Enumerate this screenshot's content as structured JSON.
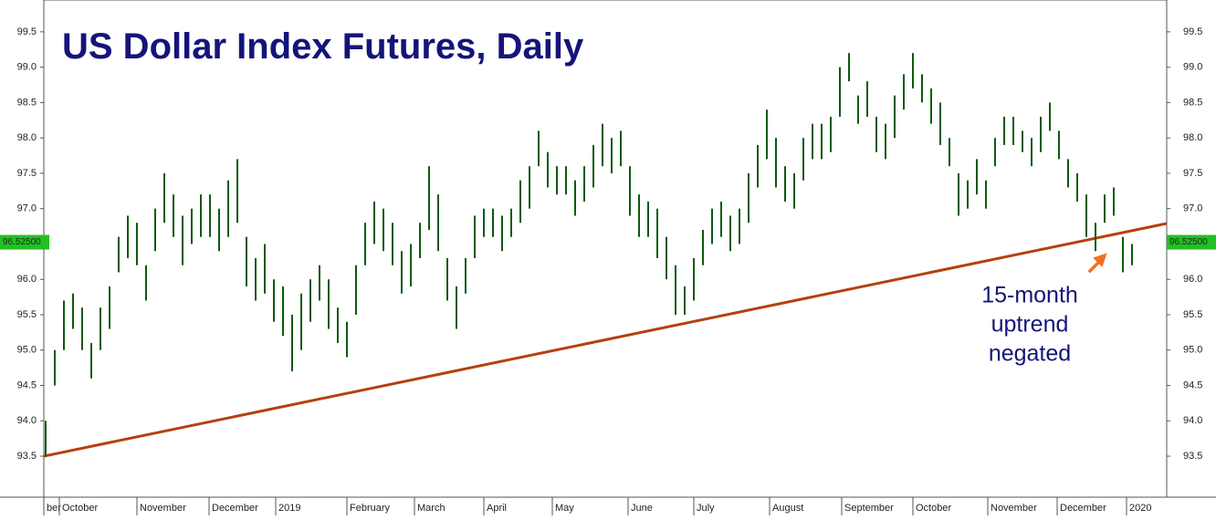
{
  "chart_data": {
    "type": "range-bar",
    "title": "US Dollar Index Futures, Daily",
    "annotation": [
      "15-month",
      "uptrend",
      "negated"
    ],
    "xlim": [
      -0.2,
      122.8
    ],
    "ylim": [
      92.92,
      99.95
    ],
    "yticks": [
      {
        "value": 93.5,
        "label": "93.5"
      },
      {
        "value": 94,
        "label": "94.0"
      },
      {
        "value": 94.5,
        "label": "94.5"
      },
      {
        "value": 95,
        "label": "95.0"
      },
      {
        "value": 95.5,
        "label": "95.5"
      },
      {
        "value": 96,
        "label": "96.0"
      },
      {
        "value": 96.5,
        "label": "96.5"
      },
      {
        "value": 97,
        "label": "97.0"
      },
      {
        "value": 97.5,
        "label": "97.5"
      },
      {
        "value": 98,
        "label": "98.0"
      },
      {
        "value": 98.5,
        "label": "98.5"
      },
      {
        "value": 99,
        "label": "99.0"
      },
      {
        "value": 99.5,
        "label": "99.5"
      }
    ],
    "xticks": [
      {
        "value": -0.2,
        "label": "ber"
      },
      {
        "value": 1.5,
        "label": "October"
      },
      {
        "value": 10,
        "label": "November"
      },
      {
        "value": 17.9,
        "label": "December"
      },
      {
        "value": 25.2,
        "label": "2019"
      },
      {
        "value": 33,
        "label": "February"
      },
      {
        "value": 40.4,
        "label": "March"
      },
      {
        "value": 48,
        "label": "April"
      },
      {
        "value": 55.5,
        "label": "May"
      },
      {
        "value": 63.8,
        "label": "June"
      },
      {
        "value": 71,
        "label": "July"
      },
      {
        "value": 79.3,
        "label": "August"
      },
      {
        "value": 87.2,
        "label": "September"
      },
      {
        "value": 95,
        "label": "October"
      },
      {
        "value": 103.2,
        "label": "November"
      },
      {
        "value": 110.8,
        "label": "December"
      },
      {
        "value": 118.4,
        "label": "2020"
      }
    ],
    "last_price": {
      "value": 96.525,
      "value_label": "96.52500",
      "color": "#22c022"
    },
    "trendline": {
      "x": [
        -0.2,
        122.8
      ],
      "values": [
        93.5,
        96.79
      ],
      "color": "#b5400f"
    },
    "series": [
      {
        "color": "#0d5a0d",
        "x": [
          0,
          1,
          2,
          3,
          4,
          5,
          6,
          7,
          8,
          9,
          10,
          11,
          12,
          13,
          14,
          15,
          16,
          17,
          18,
          19,
          20,
          21,
          22,
          23,
          24,
          25,
          26,
          27,
          28,
          29,
          30,
          31,
          32,
          33,
          34,
          35,
          36,
          37,
          38,
          39,
          40,
          41,
          42,
          43,
          44,
          45,
          46,
          47,
          48,
          49,
          50,
          51,
          52,
          53,
          54,
          55,
          56,
          57,
          58,
          59,
          60,
          61,
          62,
          63,
          64,
          65,
          66,
          67,
          68,
          69,
          70,
          71,
          72,
          73,
          74,
          75,
          76,
          77,
          78,
          79,
          80,
          81,
          82,
          83,
          84,
          85,
          86,
          87,
          88,
          89,
          90,
          91,
          92,
          93,
          94,
          95,
          96,
          97,
          98,
          99,
          100,
          101,
          102,
          103,
          104,
          105,
          106,
          107,
          108,
          109,
          110,
          111,
          112,
          113,
          114,
          115,
          116,
          117,
          118,
          119
        ],
        "high": [
          94.0,
          95.0,
          95.7,
          95.8,
          95.6,
          95.1,
          95.6,
          95.9,
          96.6,
          96.9,
          96.8,
          96.2,
          97.0,
          97.5,
          97.2,
          96.9,
          97.0,
          97.2,
          97.2,
          97.0,
          97.4,
          97.7,
          96.6,
          96.3,
          96.5,
          96.0,
          95.9,
          95.5,
          95.8,
          96.0,
          96.2,
          96.0,
          95.6,
          95.4,
          96.2,
          96.8,
          97.1,
          97.0,
          96.8,
          96.4,
          96.5,
          96.8,
          97.6,
          97.2,
          96.3,
          95.9,
          96.3,
          96.9,
          97.0,
          97.0,
          96.9,
          97.0,
          97.4,
          97.6,
          98.1,
          97.8,
          97.6,
          97.6,
          97.4,
          97.6,
          97.9,
          98.2,
          98.0,
          98.1,
          97.6,
          97.2,
          97.1,
          97.0,
          96.6,
          96.2,
          95.9,
          96.3,
          96.7,
          97.0,
          97.1,
          96.9,
          97.0,
          97.5,
          97.9,
          98.4,
          98.0,
          97.6,
          97.5,
          98.0,
          98.2,
          98.2,
          98.3,
          99.0,
          99.2,
          98.6,
          98.8,
          98.3,
          98.2,
          98.6,
          98.9,
          99.2,
          98.9,
          98.7,
          98.5,
          98.0,
          97.5,
          97.4,
          97.7,
          97.4,
          98.0,
          98.3,
          98.3,
          98.1,
          98.0,
          98.3,
          98.5,
          98.1,
          97.7,
          97.5,
          97.2,
          96.8,
          97.2,
          97.3,
          96.6,
          96.5
        ],
        "low": [
          93.5,
          94.5,
          95.0,
          95.3,
          95.0,
          94.6,
          95.0,
          95.3,
          96.1,
          96.3,
          96.2,
          95.7,
          96.4,
          96.8,
          96.6,
          96.2,
          96.5,
          96.6,
          96.6,
          96.4,
          96.6,
          96.8,
          95.9,
          95.7,
          95.8,
          95.4,
          95.2,
          94.7,
          95.0,
          95.4,
          95.7,
          95.3,
          95.1,
          94.9,
          95.5,
          96.2,
          96.5,
          96.4,
          96.2,
          95.8,
          95.9,
          96.3,
          96.7,
          96.4,
          95.7,
          95.3,
          95.8,
          96.3,
          96.6,
          96.6,
          96.4,
          96.6,
          96.8,
          97.0,
          97.6,
          97.3,
          97.2,
          97.2,
          96.9,
          97.1,
          97.3,
          97.6,
          97.5,
          97.6,
          96.9,
          96.6,
          96.6,
          96.3,
          96.0,
          95.5,
          95.5,
          95.7,
          96.2,
          96.5,
          96.6,
          96.4,
          96.5,
          96.8,
          97.3,
          97.7,
          97.3,
          97.1,
          97.0,
          97.4,
          97.7,
          97.7,
          97.8,
          98.3,
          98.8,
          98.2,
          98.3,
          97.8,
          97.7,
          98.0,
          98.4,
          98.7,
          98.5,
          98.2,
          97.9,
          97.6,
          96.9,
          97.0,
          97.2,
          97.0,
          97.6,
          97.9,
          97.9,
          97.8,
          97.6,
          97.8,
          98.1,
          97.7,
          97.3,
          97.1,
          96.6,
          96.4,
          96.8,
          96.9,
          96.1,
          96.2
        ]
      }
    ]
  }
}
